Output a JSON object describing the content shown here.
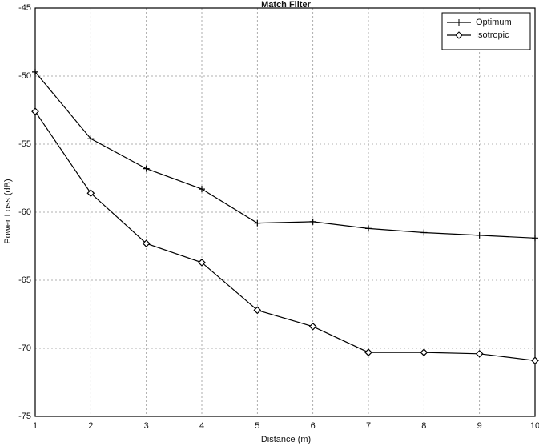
{
  "chart_data": {
    "type": "line",
    "title": "Match Filter",
    "xlabel": "Distance (m)",
    "ylabel": "Power Loss (dB)",
    "x": [
      1,
      2,
      3,
      4,
      5,
      6,
      7,
      8,
      9,
      10
    ],
    "series": [
      {
        "name": "Optimum",
        "color": "#000000",
        "marker": "plus",
        "values": [
          -49.7,
          -54.6,
          -56.8,
          -58.3,
          -60.8,
          -60.7,
          -61.2,
          -61.5,
          -61.7,
          -61.9
        ]
      },
      {
        "name": "Isotropic",
        "color": "#000000",
        "marker": "diamond",
        "values": [
          -52.6,
          -58.6,
          -62.3,
          -63.7,
          -67.2,
          -68.4,
          -70.3,
          -70.3,
          -70.4,
          -70.9
        ]
      }
    ],
    "xlim": [
      1,
      10
    ],
    "xticks": [
      1,
      2,
      3,
      4,
      5,
      6,
      7,
      8,
      9,
      10
    ],
    "ylim": [
      -75,
      -45
    ],
    "yticks": [
      -75,
      -70,
      -65,
      -60,
      -55,
      -50,
      -45
    ],
    "grid": true,
    "legend": "upper right"
  }
}
